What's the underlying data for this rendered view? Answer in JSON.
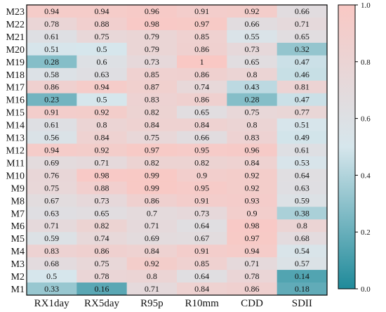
{
  "chart_data": {
    "type": "heatmap",
    "title": "",
    "xlabel": "",
    "ylabel": "",
    "columns": [
      "RX1day",
      "RX5day",
      "R95p",
      "R10mm",
      "CDD",
      "SDII"
    ],
    "rows": [
      "M23",
      "M22",
      "M21",
      "M20",
      "M19",
      "M18",
      "M17",
      "M16",
      "M15",
      "M14",
      "M13",
      "M12",
      "M11",
      "M10",
      "M9",
      "M8",
      "M7",
      "M6",
      "M5",
      "M4",
      "M3",
      "M2",
      "M1"
    ],
    "values": [
      [
        "0.94",
        "0.94",
        "0.96",
        "0.91",
        "0.92",
        "0.66"
      ],
      [
        "0.78",
        "0.88",
        "0.98",
        "0.97",
        "0.66",
        "0.71"
      ],
      [
        "0.61",
        "0.75",
        "0.79",
        "0.85",
        "0.55",
        "0.65"
      ],
      [
        "0.51",
        "0.5",
        "0.79",
        "0.86",
        "0.73",
        "0.32"
      ],
      [
        "0.28",
        "0.6",
        "0.73",
        "1",
        "0.65",
        "0.47"
      ],
      [
        "0.58",
        "0.63",
        "0.85",
        "0.86",
        "0.8",
        "0.46"
      ],
      [
        "0.86",
        "0.94",
        "0.87",
        "0.74",
        "0.43",
        "0.81"
      ],
      [
        "0.23",
        "0.5",
        "0.83",
        "0.86",
        "0.28",
        "0.47"
      ],
      [
        "0.91",
        "0.92",
        "0.82",
        "0.65",
        "0.75",
        "0.77"
      ],
      [
        "0.61",
        "0.8",
        "0.84",
        "0.84",
        "0.8",
        "0.51"
      ],
      [
        "0.56",
        "0.84",
        "0.75",
        "0.66",
        "0.83",
        "0.49"
      ],
      [
        "0.94",
        "0.92",
        "0.97",
        "0.95",
        "0.96",
        "0.61"
      ],
      [
        "0.69",
        "0.71",
        "0.82",
        "0.82",
        "0.84",
        "0.53"
      ],
      [
        "0.76",
        "0.98",
        "0.99",
        "0.9",
        "0.92",
        "0.64"
      ],
      [
        "0.75",
        "0.88",
        "0.99",
        "0.95",
        "0.92",
        "0.63"
      ],
      [
        "0.67",
        "0.73",
        "0.86",
        "0.91",
        "0.93",
        "0.59"
      ],
      [
        "0.63",
        "0.65",
        "0.7",
        "0.73",
        "0.9",
        "0.38"
      ],
      [
        "0.71",
        "0.82",
        "0.71",
        "0.64",
        "0.98",
        "0.8"
      ],
      [
        "0.59",
        "0.74",
        "0.69",
        "0.67",
        "0.97",
        "0.68"
      ],
      [
        "0.83",
        "0.86",
        "0.84",
        "0.91",
        "0.94",
        "0.54"
      ],
      [
        "0.68",
        "0.75",
        "0.92",
        "0.85",
        "0.71",
        "0.57"
      ],
      [
        "0.5",
        "0.78",
        "0.8",
        "0.64",
        "0.78",
        "0.14"
      ],
      [
        "0.33",
        "0.16",
        "0.71",
        "0.84",
        "0.86",
        "0.18"
      ]
    ],
    "colorbar": {
      "min": 0.0,
      "max": 1.0,
      "ticks": [
        "0.0",
        "0.2",
        "0.4",
        "0.6",
        "0.8",
        "1.0"
      ],
      "colors": {
        "low": "#1f8a9a",
        "mid": "#d6e6ec",
        "high": "#f9c8c4"
      }
    },
    "grid": false,
    "legend": "right"
  }
}
